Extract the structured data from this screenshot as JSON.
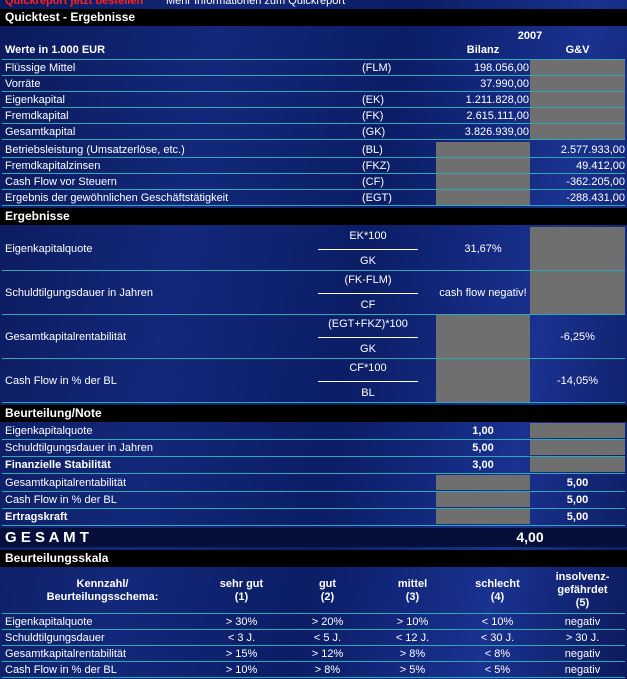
{
  "top_links": {
    "order": "Quickreport jetzt bestellen",
    "info": "Mehr Informationen zum Quickreport"
  },
  "quicktest": {
    "title": "Quicktest - Ergebnisse",
    "year": "2007",
    "unit": "Werte in 1.000 EUR",
    "col_bilanz": "Bilanz",
    "col_guv": "G&V",
    "rows": [
      {
        "label": "Flüssige Mittel",
        "abbr": "(FLM)",
        "bilanz": "198.056,00"
      },
      {
        "label": "Vorräte",
        "bilanz": "37.990,00"
      },
      {
        "label": "Eigenkapital",
        "abbr": "(EK)",
        "bilanz": "1.211.828,00"
      },
      {
        "label": "Fremdkapital",
        "abbr": "(FK)",
        "bilanz": "2.615.111,00"
      },
      {
        "label": "Gesamtkapital",
        "abbr": "(GK)",
        "bilanz": "3.826.939,00"
      },
      {
        "label": "Betriebsleistung (Umsatzerlöse, etc.)",
        "abbr": "(BL)",
        "guv": "2.577.933,00"
      },
      {
        "label": "Fremdkapitalzinsen",
        "abbr": "(FKZ)",
        "guv": "49.412,00"
      },
      {
        "label": "Cash Flow vor Steuern",
        "abbr": "(CF)",
        "guv": "-362.205,00"
      },
      {
        "label": "Ergebnis der gewöhnlichen Geschäftstätigkeit",
        "abbr": "(EGT)",
        "guv": "-288.431,00"
      }
    ]
  },
  "ergebnisse": {
    "title": "Ergebnisse",
    "rows": [
      {
        "label": "Eigenkapitalquote",
        "numerator": "EK*100",
        "denominator": "GK",
        "bilanz": "31,67%"
      },
      {
        "label": "Schuldtilgungsdauer in Jahren",
        "numerator": "(FK-FLM)",
        "denominator": "CF",
        "bilanz": "cash flow negativ!"
      },
      {
        "label": "Gesamtkapitalrentabilität",
        "numerator": "(EGT+FKZ)*100",
        "denominator": "GK",
        "guv": "-6,25%"
      },
      {
        "label": "Cash Flow in % der BL",
        "numerator": "CF*100",
        "denominator": "BL",
        "guv": "-14,05%"
      }
    ]
  },
  "beurteilung": {
    "title": "Beurteilung/Note",
    "rows": [
      {
        "label": "Eigenkapitalquote",
        "bilanz": "1,00"
      },
      {
        "label": "Schuldtilgungsdauer in Jahren",
        "bilanz": "5,00"
      },
      {
        "label": "Finanzielle Stabilität",
        "bilanz": "3,00",
        "emphasis": true
      },
      {
        "label": "Gesamtkapitalrentabilität",
        "guv": "5,00"
      },
      {
        "label": "Cash Flow in % der BL",
        "guv": "5,00"
      },
      {
        "label": "Ertragskraft",
        "guv": "5,00",
        "emphasis": true
      }
    ],
    "total_label": "G E S A M T",
    "total": "4,00"
  },
  "skala": {
    "title": "Beurteilungsskala",
    "header": [
      "Kennzahl/\nBeurteilungsschema:",
      "sehr gut\n(1)",
      "gut\n(2)",
      "mittel\n(3)",
      "schlecht\n(4)",
      "insolvenz-\ngefährdet\n(5)"
    ],
    "rows": [
      [
        "Eigenkapitalquote",
        "> 30%",
        "> 20%",
        "> 10%",
        "< 10%",
        "negativ"
      ],
      [
        "Schuldtilgungsdauer",
        "< 3 J.",
        "< 5 J.",
        "< 12 J.",
        "< 30 J.",
        "> 30 J."
      ],
      [
        "Gesamtkapitalrentabilität",
        "> 15%",
        "> 12%",
        "> 8%",
        "< 8%",
        "negativ"
      ],
      [
        "Cash Flow in % der BL",
        "> 10%",
        "> 8%",
        "> 5%",
        "< 5%",
        "negativ"
      ]
    ]
  }
}
